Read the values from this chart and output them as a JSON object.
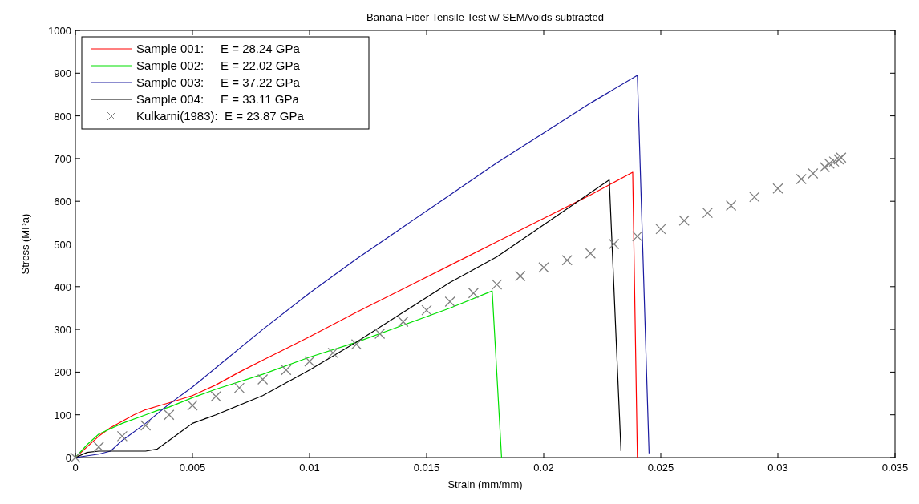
{
  "chart_data": {
    "type": "line",
    "title": "Banana Fiber Tensile Test w/ SEM/voids subtracted",
    "xlabel": "Strain (mm/mm)",
    "ylabel": "Stress (MPa)",
    "xlim": [
      0,
      0.035
    ],
    "xticks": [
      0,
      0.005,
      0.01,
      0.015,
      0.02,
      0.025,
      0.03,
      0.035
    ],
    "ylim": [
      0,
      1000
    ],
    "yticks": [
      0,
      100,
      200,
      300,
      400,
      500,
      600,
      700,
      800,
      900,
      1000
    ],
    "grid": false,
    "legend": "top left",
    "line_style": "solid",
    "series": [
      {
        "name": "Sample 001:     E = 28.24 GPa",
        "color": "#ff0000",
        "x": [
          0,
          0.0005,
          0.001,
          0.0015,
          0.002,
          0.0025,
          0.003,
          0.0035,
          0.004,
          0.005,
          0.006,
          0.007,
          0.008,
          0.009,
          0.01,
          0.012,
          0.014,
          0.016,
          0.018,
          0.02,
          0.022,
          0.0238,
          0.024
        ],
        "values": [
          0,
          25,
          50,
          70,
          85,
          100,
          112,
          120,
          128,
          145,
          170,
          200,
          228,
          255,
          283,
          340,
          395,
          450,
          505,
          560,
          615,
          668,
          0
        ]
      },
      {
        "name": "Sample 002:     E = 22.02 GPa",
        "color": "#00e000",
        "x": [
          0,
          0.0005,
          0.001,
          0.002,
          0.003,
          0.0035,
          0.004,
          0.005,
          0.006,
          0.008,
          0.01,
          0.012,
          0.014,
          0.016,
          0.0178,
          0.0182
        ],
        "values": [
          0,
          30,
          55,
          80,
          100,
          110,
          118,
          140,
          160,
          195,
          235,
          270,
          310,
          350,
          390,
          0
        ]
      },
      {
        "name": "Sample 003:     E = 37.22 GPa",
        "color": "#1a1aa0",
        "x": [
          0,
          0.001,
          0.0015,
          0.002,
          0.003,
          0.004,
          0.005,
          0.006,
          0.008,
          0.01,
          0.012,
          0.014,
          0.016,
          0.018,
          0.02,
          0.022,
          0.024,
          0.0245
        ],
        "values": [
          0,
          8,
          15,
          40,
          80,
          125,
          165,
          210,
          300,
          385,
          465,
          540,
          615,
          690,
          760,
          830,
          895,
          10
        ]
      },
      {
        "name": "Sample 004:     E = 33.11 GPa",
        "color": "#000000",
        "x": [
          0,
          0.0005,
          0.001,
          0.002,
          0.003,
          0.0035,
          0.004,
          0.0045,
          0.005,
          0.006,
          0.008,
          0.01,
          0.012,
          0.014,
          0.016,
          0.018,
          0.02,
          0.022,
          0.0228,
          0.0233
        ],
        "values": [
          0,
          12,
          15,
          15,
          15,
          20,
          40,
          60,
          80,
          100,
          145,
          205,
          270,
          340,
          410,
          470,
          545,
          620,
          650,
          15
        ]
      },
      {
        "name": "Kulkarni(1983):  E = 23.87 GPa",
        "type": "scatter",
        "marker": "cross",
        "color": "#808080",
        "x": [
          0,
          0.001,
          0.002,
          0.003,
          0.004,
          0.005,
          0.006,
          0.007,
          0.008,
          0.009,
          0.01,
          0.011,
          0.012,
          0.013,
          0.014,
          0.015,
          0.016,
          0.017,
          0.018,
          0.019,
          0.02,
          0.021,
          0.022,
          0.023,
          0.024,
          0.025,
          0.026,
          0.027,
          0.028,
          0.029,
          0.03,
          0.031,
          0.0315,
          0.032,
          0.0322,
          0.0324,
          0.0326,
          0.0327
        ],
        "values": [
          0,
          25,
          50,
          75,
          100,
          122,
          143,
          163,
          183,
          205,
          225,
          245,
          265,
          290,
          318,
          345,
          365,
          385,
          405,
          425,
          445,
          462,
          478,
          500,
          518,
          535,
          555,
          573,
          590,
          610,
          630,
          652,
          665,
          680,
          688,
          693,
          698,
          702
        ]
      }
    ]
  }
}
